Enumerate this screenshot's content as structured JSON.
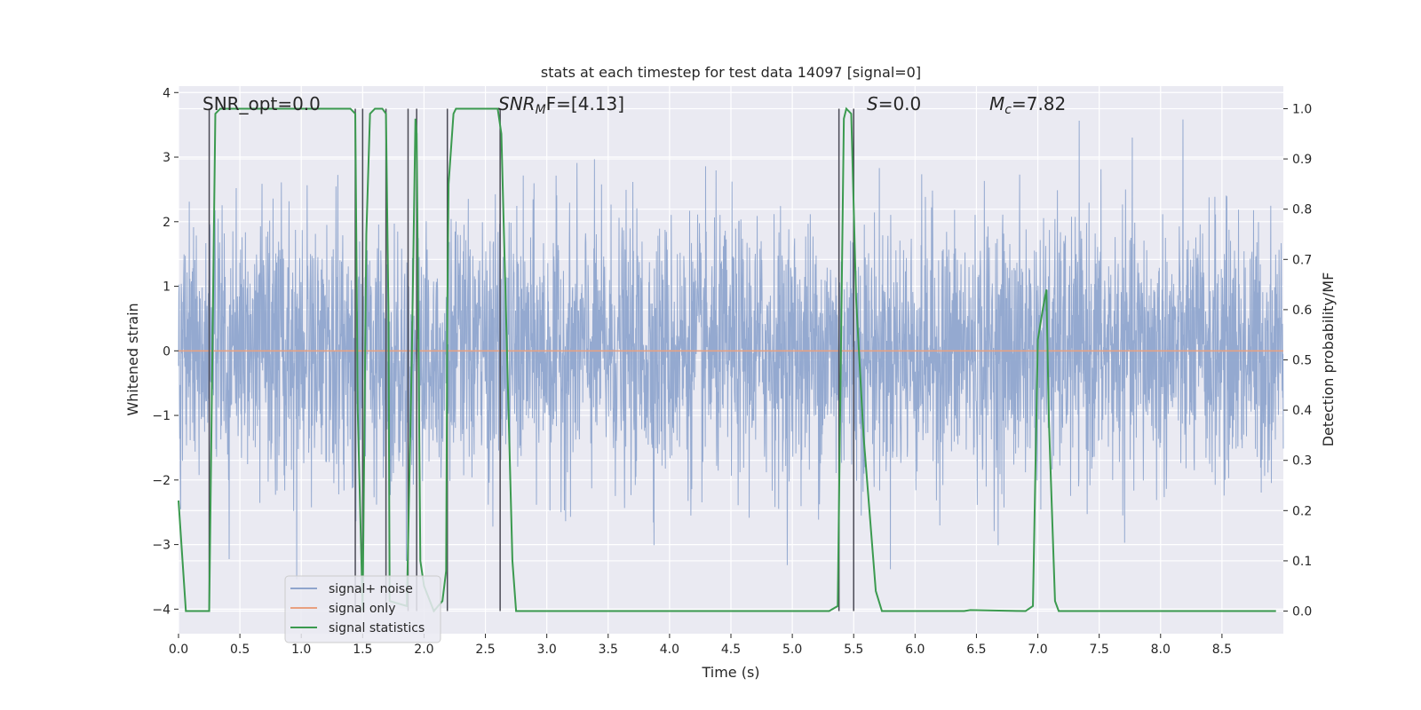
{
  "chart_data": {
    "type": "line",
    "title": "stats at each timestep for test data 14097 [signal=0]",
    "xlabel": "Time (s)",
    "ylabel": "Whitened strain",
    "y2label": "Detection probability/MF",
    "xlim": [
      0,
      9.0
    ],
    "ylim": [
      -4.38,
      4.1
    ],
    "y2lim": [
      -0.045,
      1.045
    ],
    "xticks": [
      "0.0",
      "0.5",
      "1.0",
      "1.5",
      "2.0",
      "2.5",
      "3.0",
      "3.5",
      "4.0",
      "4.5",
      "5.0",
      "5.5",
      "6.0",
      "6.5",
      "7.0",
      "7.5",
      "8.0",
      "8.5"
    ],
    "yticks": [
      "−4",
      "−3",
      "−2",
      "−1",
      "0",
      "1",
      "2",
      "3",
      "4"
    ],
    "y2ticks": [
      "0.0",
      "0.1",
      "0.2",
      "0.3",
      "0.4",
      "0.5",
      "0.6",
      "0.7",
      "0.8",
      "0.9",
      "1.0"
    ],
    "grid": true,
    "legend_position": "lower-left",
    "annotations": {
      "snr_opt": "SNR_opt=0.0",
      "snr_mf_label": "SNR",
      "snr_mf_sub": "M",
      "snr_mf_suffix": "F=[4.13]",
      "s_label": "S",
      "s_suffix": "=0.0",
      "mc_label": "M",
      "mc_sub": "c",
      "mc_suffix": "=7.82"
    },
    "series": [
      {
        "name": "signal+ noise",
        "color": "#8fa5cd",
        "axis": "left",
        "description_values": "dense noise, approx ±1.5 typical, peaks to ±3.7"
      },
      {
        "name": "signal only",
        "color": "#e8a07f",
        "axis": "left",
        "values": "constant 0"
      },
      {
        "name": "signal statistics",
        "color": "#3b9a4f",
        "axis": "right",
        "x": [
          0.0,
          0.06,
          0.25,
          0.3,
          0.34,
          0.4,
          1.0,
          1.4,
          1.44,
          1.46,
          1.5,
          1.53,
          1.56,
          1.6,
          1.66,
          1.69,
          1.71,
          1.72,
          1.86,
          1.9,
          1.93,
          1.94,
          1.97,
          2.0,
          2.08,
          2.15,
          2.18,
          2.19,
          2.2,
          2.24,
          2.26,
          2.3,
          2.6,
          2.63,
          2.72,
          2.75,
          3.5,
          4.5,
          5.3,
          5.37,
          5.42,
          5.44,
          5.48,
          5.52,
          5.58,
          5.68,
          5.73,
          6.4,
          6.45,
          6.9,
          6.96,
          7.0,
          7.04,
          7.07,
          7.09,
          7.14,
          7.17,
          7.5,
          8.5,
          8.94
        ],
        "values": [
          0.22,
          0.0,
          0.0,
          0.99,
          1.0,
          1.0,
          1.0,
          1.0,
          0.99,
          0.4,
          0.0,
          0.75,
          0.99,
          1.0,
          1.0,
          0.99,
          0.6,
          0.02,
          0.01,
          0.5,
          0.98,
          0.95,
          0.1,
          0.05,
          0.0,
          0.02,
          0.08,
          0.6,
          0.85,
          0.99,
          1.0,
          1.0,
          1.0,
          0.95,
          0.1,
          0.0,
          0.0,
          0.0,
          0.0,
          0.01,
          0.98,
          1.0,
          0.99,
          0.62,
          0.35,
          0.04,
          0.0,
          0.0,
          0.002,
          0.0,
          0.01,
          0.54,
          0.6,
          0.64,
          0.38,
          0.02,
          0.0,
          0.0,
          0.0,
          0.0
        ]
      }
    ],
    "vertical_markers_x": [
      0.25,
      1.44,
      1.5,
      1.69,
      1.87,
      1.94,
      2.19,
      2.62,
      5.38,
      5.5
    ]
  },
  "colors": {
    "plot_bg": "#eaeaf2",
    "grid": "#ffffff",
    "noise": "#8fa5cd",
    "signal_only": "#e8a07f",
    "stat": "#3b9a4f",
    "marker": "#4a4a55"
  }
}
